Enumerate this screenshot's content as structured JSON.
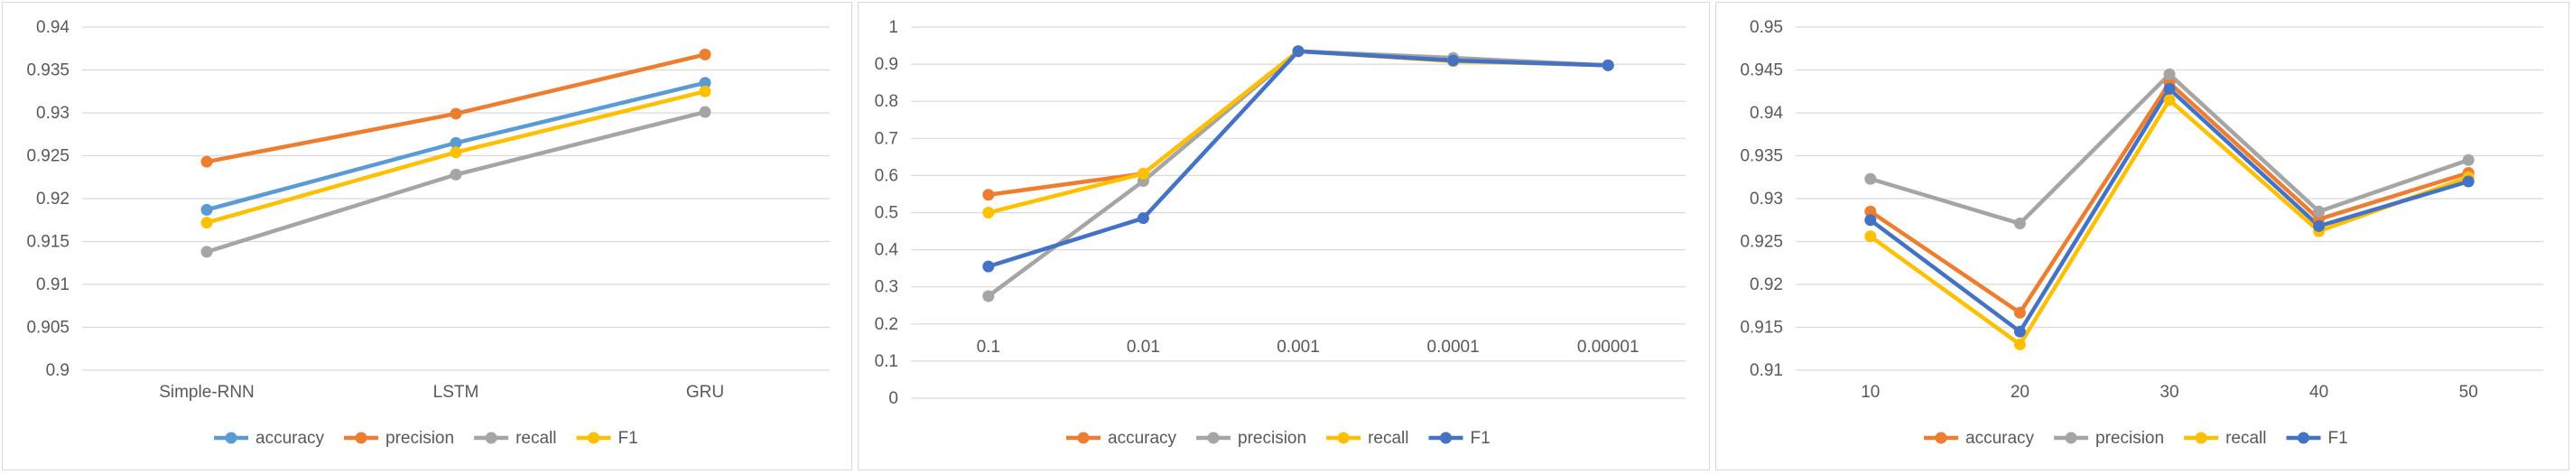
{
  "chart_data": [
    {
      "type": "line",
      "title": "",
      "xlabel": "",
      "ylabel": "",
      "categories": [
        "Simple-RNN",
        "LSTM",
        "GRU"
      ],
      "ylim": [
        0.9,
        0.94
      ],
      "yticks": [
        "0.9",
        "0.905",
        "0.91",
        "0.915",
        "0.92",
        "0.925",
        "0.93",
        "0.935",
        "0.94"
      ],
      "grid": true,
      "legend": "bottom",
      "series": [
        {
          "name": "accuracy",
          "color": "#5B9BD5",
          "values": [
            0.9187,
            0.9265,
            0.9335
          ]
        },
        {
          "name": "precision",
          "color": "#ED7D31",
          "values": [
            0.9243,
            0.9299,
            0.9368
          ]
        },
        {
          "name": "recall",
          "color": "#A5A5A5",
          "values": [
            0.9138,
            0.9228,
            0.9301
          ]
        },
        {
          "name": "F1",
          "color": "#FFC000",
          "values": [
            0.9172,
            0.9254,
            0.9325
          ]
        }
      ]
    },
    {
      "type": "line",
      "title": "",
      "xlabel": "",
      "ylabel": "",
      "categories": [
        "0.1",
        "0.01",
        "0.001",
        "0.0001",
        "0.00001"
      ],
      "ylim": [
        0,
        1
      ],
      "yticks": [
        "0",
        "0.1",
        "0.2",
        "0.3",
        "0.4",
        "0.5",
        "0.6",
        "0.7",
        "0.8",
        "0.9",
        "1"
      ],
      "grid": true,
      "legend": "bottom",
      "series": [
        {
          "name": "accuracy",
          "color": "#ED7D31",
          "values": [
            0.548,
            0.605,
            0.935,
            0.91,
            0.897
          ]
        },
        {
          "name": "precision",
          "color": "#A5A5A5",
          "values": [
            0.275,
            0.585,
            0.935,
            0.917,
            0.897
          ]
        },
        {
          "name": "recall",
          "color": "#FFC000",
          "values": [
            0.5,
            0.605,
            0.935,
            0.908,
            0.897
          ]
        },
        {
          "name": "F1",
          "color": "#4472C4",
          "values": [
            0.355,
            0.485,
            0.935,
            0.91,
            0.897
          ]
        }
      ]
    },
    {
      "type": "line",
      "title": "",
      "xlabel": "",
      "ylabel": "",
      "categories": [
        "10",
        "20",
        "30",
        "40",
        "50"
      ],
      "ylim": [
        0.91,
        0.95
      ],
      "yticks": [
        "0.91",
        "0.915",
        "0.92",
        "0.925",
        "0.93",
        "0.935",
        "0.94",
        "0.945",
        "0.95"
      ],
      "grid": true,
      "legend": "bottom",
      "series": [
        {
          "name": "accuracy",
          "color": "#ED7D31",
          "values": [
            0.9285,
            0.9167,
            0.9435,
            0.9276,
            0.933
          ]
        },
        {
          "name": "precision",
          "color": "#A5A5A5",
          "values": [
            0.9323,
            0.9271,
            0.9445,
            0.9285,
            0.9345
          ]
        },
        {
          "name": "recall",
          "color": "#FFC000",
          "values": [
            0.9256,
            0.913,
            0.9415,
            0.9262,
            0.9325
          ]
        },
        {
          "name": "F1",
          "color": "#4472C4",
          "values": [
            0.9275,
            0.9145,
            0.9428,
            0.9268,
            0.932
          ]
        }
      ]
    }
  ]
}
